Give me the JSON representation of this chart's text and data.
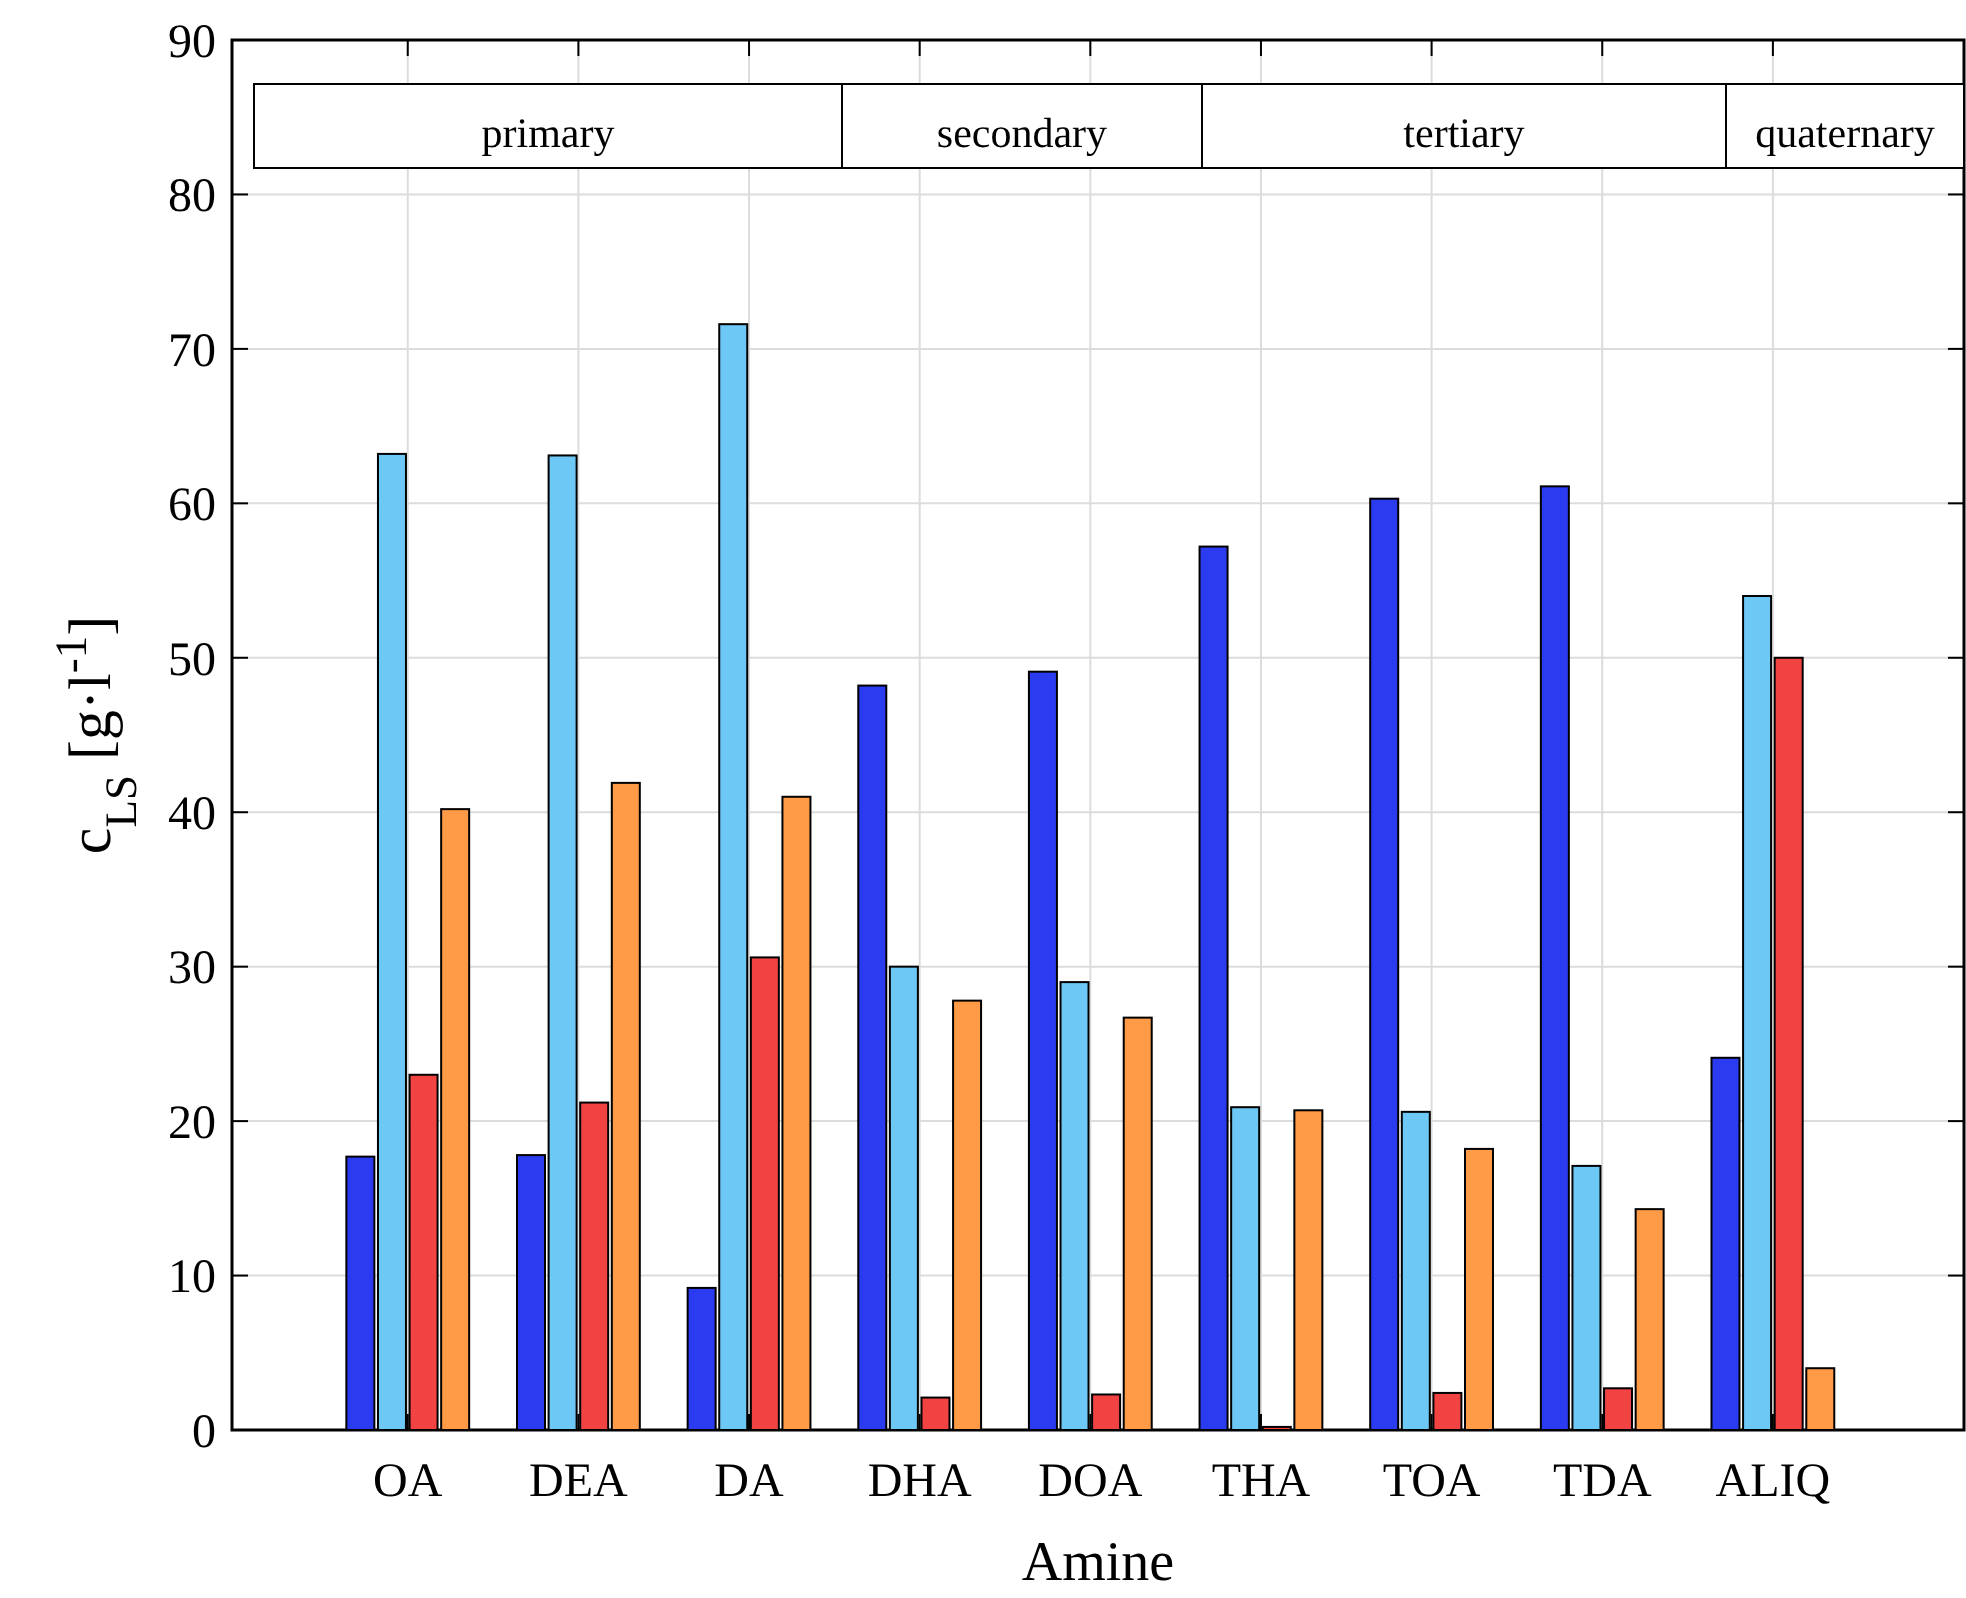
{
  "chart_data": {
    "type": "bar",
    "xlabel": "Amine",
    "ylabel": "c$_{LS}$ [g·l$^{-1}$]",
    "categories": [
      "OA",
      "DEA",
      "DA",
      "DHA",
      "DOA",
      "THA",
      "TOA",
      "TDA",
      "ALIQ"
    ],
    "series": [
      {
        "color": "#2b3bf0",
        "values": [
          17.7,
          17.8,
          9.2,
          48.2,
          49.1,
          57.2,
          60.3,
          61.1,
          24.1
        ]
      },
      {
        "color": "#6ec8f5",
        "values": [
          63.2,
          63.1,
          71.6,
          30.0,
          29.0,
          20.9,
          20.6,
          17.1,
          54.0
        ]
      },
      {
        "color": "#f24343",
        "values": [
          23.0,
          21.2,
          30.6,
          2.1,
          2.3,
          0.2,
          2.4,
          2.7,
          50.0
        ]
      },
      {
        "color": "#ff9a47",
        "values": [
          40.2,
          41.9,
          41.0,
          27.8,
          26.7,
          20.7,
          18.2,
          14.3,
          4.0
        ]
      }
    ],
    "ylim": [
      0,
      90
    ],
    "yticks": [
      0,
      10,
      20,
      30,
      40,
      50,
      60,
      70,
      80,
      90
    ],
    "grid": true,
    "annotations": [
      "primary",
      "secondary",
      "tertiary",
      "quaternary"
    ]
  }
}
